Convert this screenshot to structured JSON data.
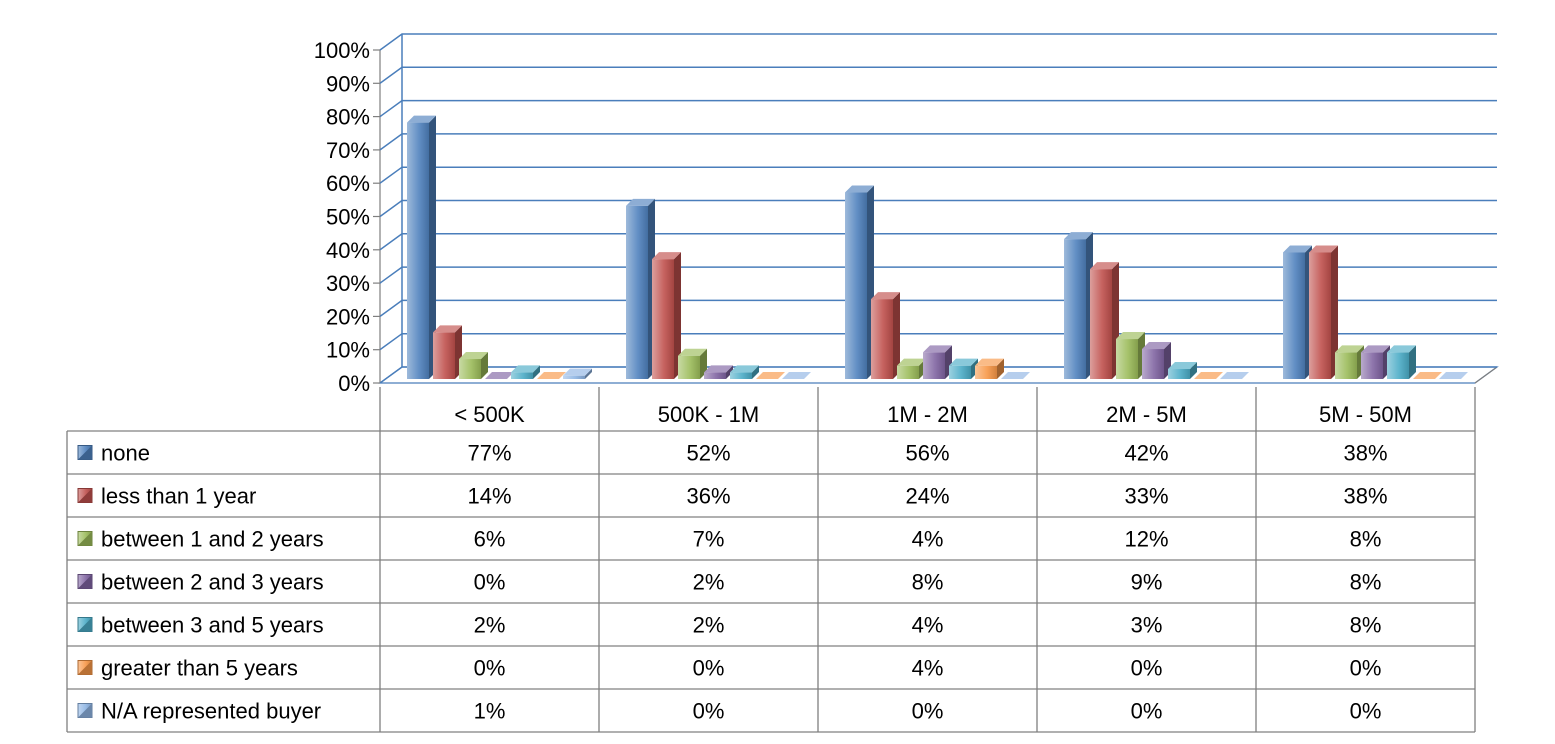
{
  "chart_data": {
    "type": "bar",
    "title": "",
    "xlabel": "",
    "ylabel": "",
    "ylim": [
      0,
      100
    ],
    "y_ticks": [
      "0%",
      "10%",
      "20%",
      "30%",
      "40%",
      "50%",
      "60%",
      "70%",
      "80%",
      "90%",
      "100%"
    ],
    "y_tick_values": [
      0,
      10,
      20,
      30,
      40,
      50,
      60,
      70,
      80,
      90,
      100
    ],
    "value_suffix": "%",
    "grid": true,
    "style": "3d-clustered-column-with-data-table",
    "categories": [
      "< 500K",
      "500K - 1M",
      "1M - 2M",
      "2M - 5M",
      "5M - 50M"
    ],
    "series": [
      {
        "name": "none",
        "color": "#4F81BD",
        "values": [
          77,
          52,
          56,
          42,
          38
        ]
      },
      {
        "name": "less than 1 year",
        "color": "#C0504D",
        "values": [
          14,
          36,
          24,
          33,
          38
        ]
      },
      {
        "name": "between 1 and 2 years",
        "color": "#9BBB59",
        "values": [
          6,
          7,
          4,
          12,
          8
        ]
      },
      {
        "name": "between 2 and 3 years",
        "color": "#8064A2",
        "values": [
          0,
          2,
          8,
          9,
          8
        ]
      },
      {
        "name": "between 3 and 5 years",
        "color": "#4BACC6",
        "values": [
          2,
          2,
          4,
          3,
          8
        ]
      },
      {
        "name": "greater than 5 years",
        "color": "#F79646",
        "values": [
          0,
          0,
          4,
          0,
          0
        ]
      },
      {
        "name": "N/A represented buyer",
        "color": "#8EB4E3",
        "values": [
          1,
          0,
          0,
          0,
          0
        ]
      }
    ],
    "table_cells": [
      [
        "77%",
        "52%",
        "56%",
        "42%",
        "38%"
      ],
      [
        "14%",
        "36%",
        "24%",
        "33%",
        "38%"
      ],
      [
        "6%",
        "7%",
        "4%",
        "12%",
        "8%"
      ],
      [
        "0%",
        "2%",
        "8%",
        "9%",
        "8%"
      ],
      [
        "2%",
        "2%",
        "4%",
        "3%",
        "8%"
      ],
      [
        "0%",
        "0%",
        "4%",
        "0%",
        "0%"
      ],
      [
        "1%",
        "0%",
        "0%",
        "0%",
        "0%"
      ]
    ]
  },
  "colors": {
    "gridline": "#4A7EBB",
    "table_border": "#808080"
  }
}
